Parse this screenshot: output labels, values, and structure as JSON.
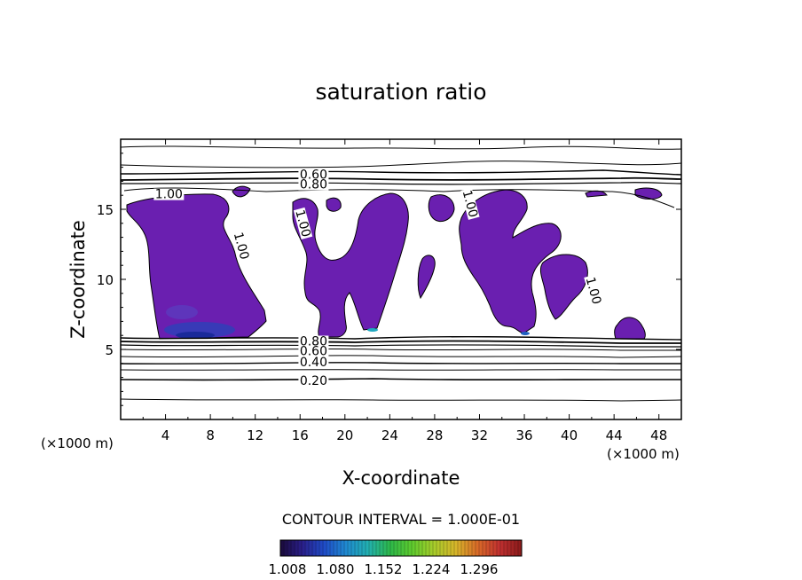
{
  "chart_data": {
    "type": "contour",
    "title": "saturation ratio",
    "xlabel": "X-coordinate",
    "ylabel": "Z-coordinate",
    "x_unit": "(×1000 m)",
    "z_unit": "(×1000 m)",
    "xlim": [
      0,
      50
    ],
    "ylim": [
      0,
      20
    ],
    "x_ticks": [
      "4",
      "8",
      "12",
      "16",
      "20",
      "24",
      "28",
      "32",
      "36",
      "40",
      "44",
      "48"
    ],
    "y_ticks": [
      "5",
      "10",
      "15"
    ],
    "contour_interval_text": "CONTOUR INTERVAL = 1.000E-01",
    "contour_labels": [
      {
        "text": "0.60",
        "x": 17.2,
        "z": 17.5
      },
      {
        "text": "0.80",
        "x": 17.2,
        "z": 16.8
      },
      {
        "text": "1.00",
        "x": 4.3,
        "z": 16.1
      },
      {
        "text": "1.00",
        "x": 16.3,
        "z": 14.0
      },
      {
        "text": "1.00",
        "x": 10.8,
        "z": 12.4
      },
      {
        "text": "1.00",
        "x": 31.2,
        "z": 15.4
      },
      {
        "text": "1.00",
        "x": 42.2,
        "z": 9.2
      },
      {
        "text": "0.80",
        "x": 17.2,
        "z": 5.6
      },
      {
        "text": "0.60",
        "x": 17.2,
        "z": 4.9
      },
      {
        "text": "0.40",
        "x": 17.2,
        "z": 4.1
      },
      {
        "text": "0.20",
        "x": 17.2,
        "z": 2.8
      }
    ],
    "colorbar": {
      "tick_labels": [
        "1.008",
        "1.080",
        "1.152",
        "1.224",
        "1.296"
      ],
      "colors": [
        "#1a0a3a",
        "#2a1f8a",
        "#1f4cc8",
        "#1f8ad0",
        "#22b0b0",
        "#2db84a",
        "#5ecb2e",
        "#a7cc2b",
        "#d7b52a",
        "#d96a28",
        "#c03030",
        "#8a1a1a"
      ]
    },
    "colors": {
      "fill": "#6a1fb0",
      "low_highlight": "#2040c8",
      "line": "#000000"
    }
  }
}
